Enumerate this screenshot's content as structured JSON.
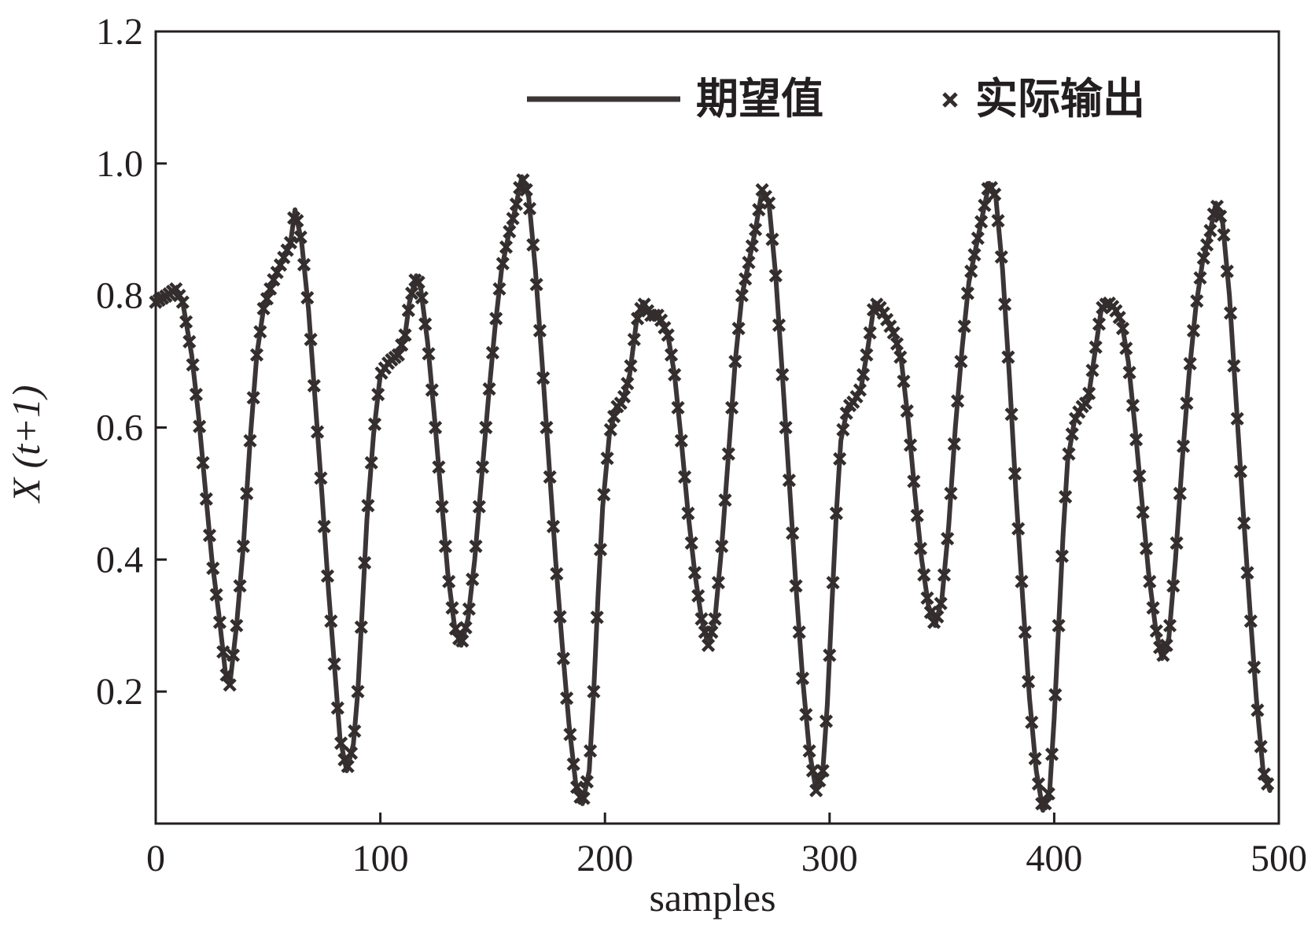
{
  "chart_data": {
    "type": "line",
    "title": "",
    "xlabel": "samples",
    "ylabel": "X (t+1)",
    "xlim": [
      0,
      500
    ],
    "ylim": [
      0,
      1.2
    ],
    "x_ticks": [
      "0",
      "100",
      "200",
      "300",
      "400",
      "500"
    ],
    "y_ticks": [
      "0.2",
      "0.4",
      "0.6",
      "0.8",
      "1.0",
      "1.2"
    ],
    "grid": false,
    "legend_position": "top-right",
    "legend": [
      "期望值",
      "实际输出"
    ],
    "series": [
      {
        "name": "期望值",
        "style": "solid-line",
        "color": "#3b3536",
        "points": [
          [
            0,
            0.79
          ],
          [
            5,
            0.8
          ],
          [
            9,
            0.81
          ],
          [
            12,
            0.79
          ],
          [
            16,
            0.71
          ],
          [
            19,
            0.62
          ],
          [
            22,
            0.51
          ],
          [
            25,
            0.4
          ],
          [
            28,
            0.32
          ],
          [
            31,
            0.23
          ],
          [
            33,
            0.21
          ],
          [
            36,
            0.3
          ],
          [
            39,
            0.42
          ],
          [
            42,
            0.58
          ],
          [
            45,
            0.71
          ],
          [
            48,
            0.78
          ],
          [
            52,
            0.82
          ],
          [
            56,
            0.85
          ],
          [
            60,
            0.88
          ],
          [
            62,
            0.93
          ],
          [
            65,
            0.88
          ],
          [
            68,
            0.78
          ],
          [
            71,
            0.64
          ],
          [
            74,
            0.5
          ],
          [
            77,
            0.35
          ],
          [
            80,
            0.22
          ],
          [
            82,
            0.13
          ],
          [
            85,
            0.08
          ],
          [
            88,
            0.12
          ],
          [
            90,
            0.2
          ],
          [
            92,
            0.33
          ],
          [
            94,
            0.46
          ],
          [
            97,
            0.59
          ],
          [
            100,
            0.68
          ],
          [
            104,
            0.7
          ],
          [
            108,
            0.71
          ],
          [
            111,
            0.74
          ],
          [
            113,
            0.79
          ],
          [
            116,
            0.83
          ],
          [
            118,
            0.81
          ],
          [
            121,
            0.73
          ],
          [
            124,
            0.62
          ],
          [
            127,
            0.5
          ],
          [
            130,
            0.38
          ],
          [
            133,
            0.3
          ],
          [
            136,
            0.27
          ],
          [
            139,
            0.31
          ],
          [
            142,
            0.4
          ],
          [
            145,
            0.52
          ],
          [
            148,
            0.64
          ],
          [
            151,
            0.75
          ],
          [
            154,
            0.84
          ],
          [
            157,
            0.89
          ],
          [
            160,
            0.93
          ],
          [
            163,
            0.98
          ],
          [
            166,
            0.95
          ],
          [
            169,
            0.84
          ],
          [
            172,
            0.7
          ],
          [
            175,
            0.55
          ],
          [
            178,
            0.4
          ],
          [
            181,
            0.27
          ],
          [
            184,
            0.15
          ],
          [
            187,
            0.06
          ],
          [
            190,
            0.03
          ],
          [
            193,
            0.08
          ],
          [
            195,
            0.2
          ],
          [
            197,
            0.35
          ],
          [
            199,
            0.48
          ],
          [
            202,
            0.59
          ],
          [
            205,
            0.63
          ],
          [
            208,
            0.64
          ],
          [
            211,
            0.68
          ],
          [
            214,
            0.76
          ],
          [
            217,
            0.79
          ],
          [
            220,
            0.77
          ],
          [
            224,
            0.77
          ],
          [
            228,
            0.74
          ],
          [
            231,
            0.68
          ],
          [
            234,
            0.58
          ],
          [
            237,
            0.47
          ],
          [
            240,
            0.38
          ],
          [
            243,
            0.31
          ],
          [
            246,
            0.27
          ],
          [
            249,
            0.31
          ],
          [
            252,
            0.42
          ],
          [
            255,
            0.56
          ],
          [
            258,
            0.7
          ],
          [
            261,
            0.8
          ],
          [
            264,
            0.85
          ],
          [
            267,
            0.9
          ],
          [
            270,
            0.96
          ],
          [
            273,
            0.94
          ],
          [
            276,
            0.83
          ],
          [
            279,
            0.68
          ],
          [
            282,
            0.52
          ],
          [
            285,
            0.36
          ],
          [
            288,
            0.22
          ],
          [
            291,
            0.11
          ],
          [
            294,
            0.05
          ],
          [
            297,
            0.08
          ],
          [
            299,
            0.18
          ],
          [
            301,
            0.33
          ],
          [
            303,
            0.47
          ],
          [
            305,
            0.58
          ],
          [
            308,
            0.63
          ],
          [
            311,
            0.64
          ],
          [
            314,
            0.66
          ],
          [
            317,
            0.72
          ],
          [
            320,
            0.79
          ],
          [
            323,
            0.78
          ],
          [
            326,
            0.76
          ],
          [
            329,
            0.74
          ],
          [
            332,
            0.7
          ],
          [
            335,
            0.61
          ],
          [
            338,
            0.5
          ],
          [
            341,
            0.4
          ],
          [
            344,
            0.33
          ],
          [
            347,
            0.3
          ],
          [
            350,
            0.34
          ],
          [
            353,
            0.45
          ],
          [
            356,
            0.6
          ],
          [
            359,
            0.72
          ],
          [
            362,
            0.82
          ],
          [
            365,
            0.87
          ],
          [
            368,
            0.92
          ],
          [
            371,
            0.97
          ],
          [
            374,
            0.95
          ],
          [
            377,
            0.84
          ],
          [
            380,
            0.68
          ],
          [
            383,
            0.5
          ],
          [
            386,
            0.34
          ],
          [
            389,
            0.19
          ],
          [
            392,
            0.08
          ],
          [
            395,
            0.02
          ],
          [
            398,
            0.05
          ],
          [
            400,
            0.16
          ],
          [
            402,
            0.3
          ],
          [
            404,
            0.44
          ],
          [
            406,
            0.55
          ],
          [
            409,
            0.61
          ],
          [
            412,
            0.63
          ],
          [
            415,
            0.64
          ],
          [
            418,
            0.71
          ],
          [
            421,
            0.78
          ],
          [
            424,
            0.79
          ],
          [
            427,
            0.78
          ],
          [
            430,
            0.76
          ],
          [
            433,
            0.7
          ],
          [
            436,
            0.6
          ],
          [
            439,
            0.49
          ],
          [
            442,
            0.38
          ],
          [
            445,
            0.3
          ],
          [
            448,
            0.25
          ],
          [
            451,
            0.28
          ],
          [
            454,
            0.4
          ],
          [
            457,
            0.55
          ],
          [
            460,
            0.68
          ],
          [
            463,
            0.78
          ],
          [
            466,
            0.85
          ],
          [
            469,
            0.89
          ],
          [
            472,
            0.94
          ],
          [
            475,
            0.91
          ],
          [
            478,
            0.8
          ],
          [
            481,
            0.64
          ],
          [
            484,
            0.48
          ],
          [
            487,
            0.33
          ],
          [
            490,
            0.19
          ],
          [
            493,
            0.08
          ],
          [
            496,
            0.05
          ]
        ]
      },
      {
        "name": "实际输出",
        "style": "x-markers",
        "color": "#332d2e"
      }
    ]
  },
  "colors": {
    "axis": "#231f20",
    "line": "#3b3536",
    "marker": "#332d2e",
    "background": "#ffffff"
  }
}
